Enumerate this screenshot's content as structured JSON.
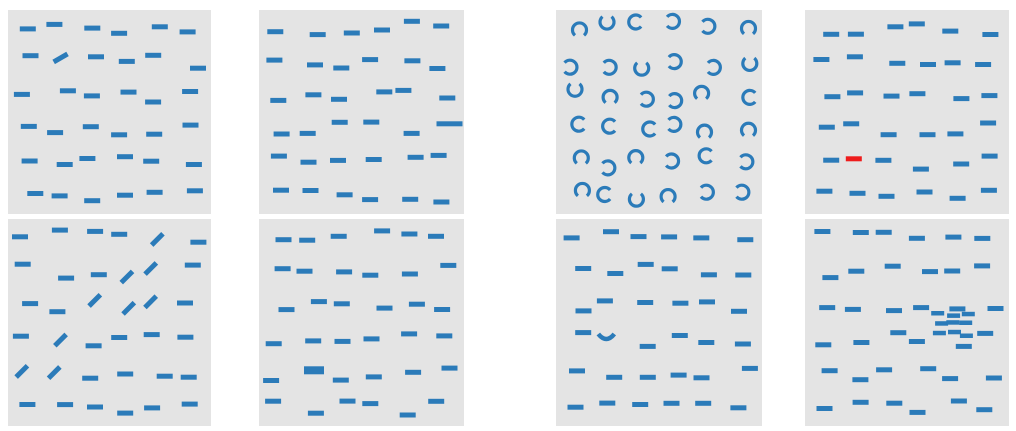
{
  "colors": {
    "panel_bg": "#e4e4e4",
    "mark": "#2b7bb9",
    "highlight": "#ee1c1c",
    "page_bg": "#ffffff"
  },
  "mark_shapes": [
    "dash",
    "arc"
  ],
  "panels": [
    {
      "id": "panel-orientation-random",
      "variant": "dash-random-tilt"
    },
    {
      "id": "panel-length-variation",
      "variant": "dash-length"
    },
    {
      "id": "panel-arc-orientation",
      "variant": "arcs"
    },
    {
      "id": "panel-color-popout",
      "variant": "dash-color"
    },
    {
      "id": "panel-tilted-diagonal",
      "variant": "dash-diagonal-tilt"
    },
    {
      "id": "panel-thickness-variation",
      "variant": "dash-thick"
    },
    {
      "id": "panel-curved-odd",
      "variant": "dash-curved"
    },
    {
      "id": "panel-density-cluster",
      "variant": "dash-cluster"
    }
  ]
}
